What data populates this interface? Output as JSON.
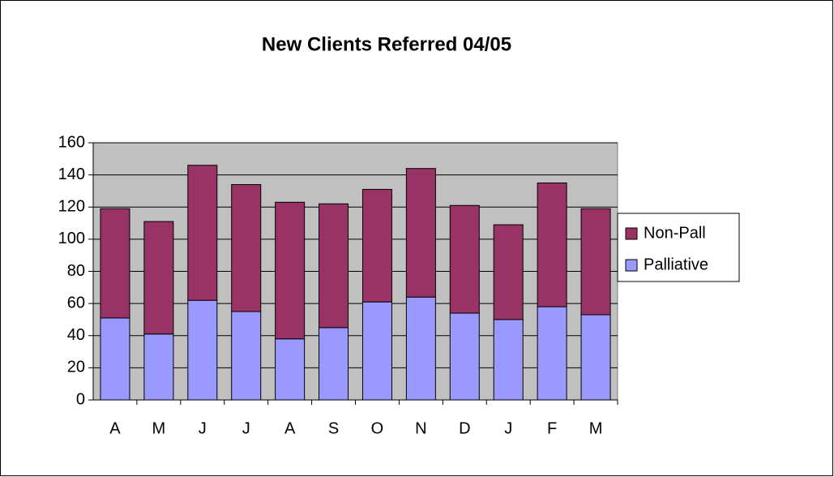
{
  "chart_data": {
    "type": "stacked_bar",
    "title": "New Clients Referred 04/05",
    "categories": [
      "A",
      "M",
      "J",
      "J",
      "A",
      "S",
      "O",
      "N",
      "D",
      "J",
      "F",
      "M"
    ],
    "series": [
      {
        "name": "Palliative",
        "color": "#9999ff",
        "values": [
          51,
          41,
          62,
          55,
          38,
          45,
          61,
          64,
          54,
          50,
          58,
          53
        ]
      },
      {
        "name": "Non-Pall",
        "color": "#993366",
        "values": [
          68,
          70,
          84,
          79,
          85,
          77,
          70,
          80,
          67,
          59,
          77,
          66
        ]
      }
    ],
    "ylim": [
      0,
      160
    ],
    "yticks": [
      0,
      20,
      40,
      60,
      80,
      100,
      120,
      140,
      160
    ],
    "grid": true,
    "legend": "right"
  }
}
